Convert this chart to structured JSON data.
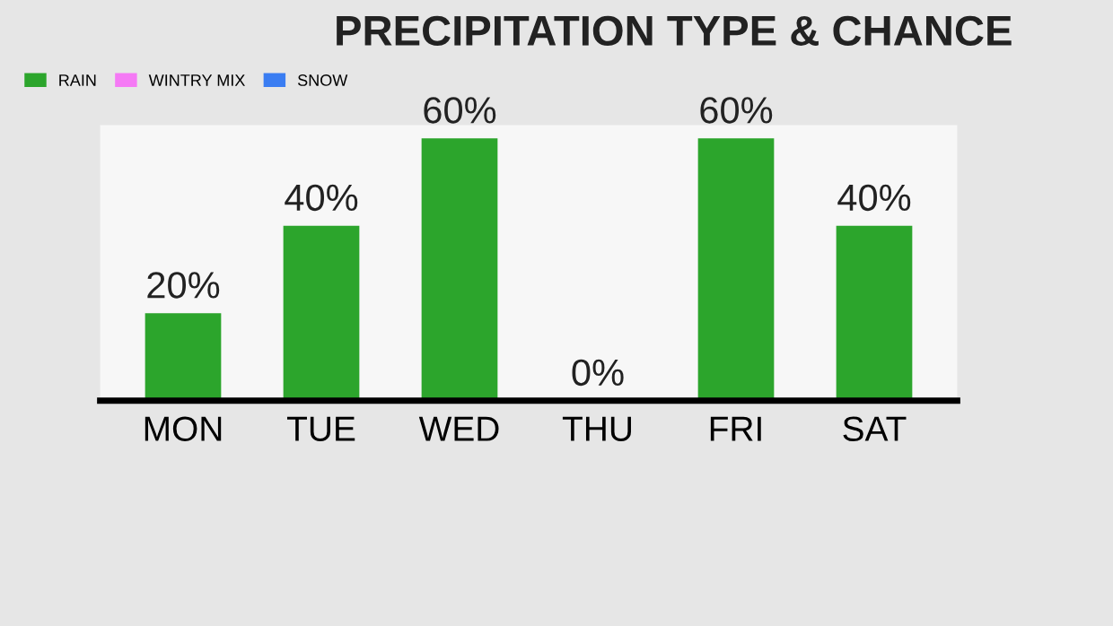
{
  "chart_data": {
    "type": "bar",
    "title": "PRECIPITATION TYPE & CHANCE",
    "categories": [
      "MON",
      "TUE",
      "WED",
      "THU",
      "FRI",
      "SAT"
    ],
    "series": [
      {
        "name": "RAIN",
        "color": "#2ca52c",
        "values": [
          20,
          40,
          60,
          0,
          60,
          40
        ],
        "value_labels": [
          "20%",
          "40%",
          "60%",
          "0%",
          "60%",
          "40%"
        ]
      },
      {
        "name": "WINTRY MIX",
        "color": "#f57af5",
        "values": [
          null,
          null,
          null,
          null,
          null,
          null
        ]
      },
      {
        "name": "SNOW",
        "color": "#3a7df2",
        "values": [
          null,
          null,
          null,
          null,
          null,
          null
        ]
      }
    ],
    "legend": "top left",
    "grid": false
  }
}
